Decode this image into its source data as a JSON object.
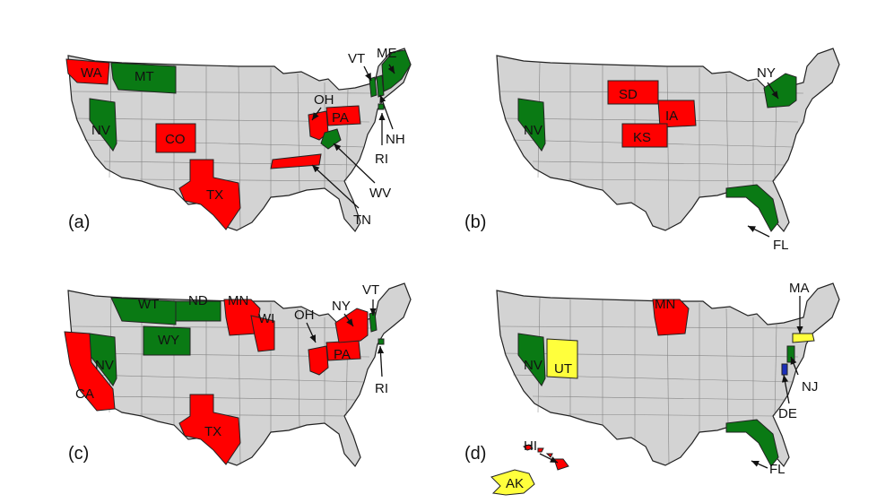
{
  "colors": {
    "red": "#ff0000",
    "green": "#0a7a14",
    "yellow": "#ffff3c",
    "blue": "#1a2eb8",
    "gray": "#d3d3d3"
  },
  "panels": [
    {
      "label": "(a)",
      "states": [
        {
          "abbr": "WA",
          "color": "red",
          "labeled": true
        },
        {
          "abbr": "MT",
          "color": "green",
          "labeled": true
        },
        {
          "abbr": "NV",
          "color": "green",
          "labeled": true
        },
        {
          "abbr": "CO",
          "color": "red",
          "labeled": true
        },
        {
          "abbr": "TX",
          "color": "red",
          "labeled": true
        },
        {
          "abbr": "OH",
          "color": "red",
          "labeled": false
        },
        {
          "abbr": "PA",
          "color": "red",
          "labeled": true
        },
        {
          "abbr": "TN",
          "color": "red",
          "labeled": false
        },
        {
          "abbr": "WV",
          "color": "green",
          "labeled": false
        },
        {
          "abbr": "VT",
          "color": "green",
          "labeled": false
        },
        {
          "abbr": "ME",
          "color": "green",
          "labeled": false
        },
        {
          "abbr": "NH",
          "color": "green",
          "labeled": false
        },
        {
          "abbr": "RI",
          "color": "green",
          "labeled": false
        }
      ],
      "callouts": [
        "OH",
        "VT",
        "ME",
        "NH",
        "RI",
        "WV",
        "TN"
      ]
    },
    {
      "label": "(b)",
      "states": [
        {
          "abbr": "NV",
          "color": "green",
          "labeled": true
        },
        {
          "abbr": "SD",
          "color": "red",
          "labeled": true
        },
        {
          "abbr": "IA",
          "color": "red",
          "labeled": true
        },
        {
          "abbr": "KS",
          "color": "red",
          "labeled": true
        },
        {
          "abbr": "NY",
          "color": "green",
          "labeled": false
        },
        {
          "abbr": "FL",
          "color": "green",
          "labeled": false
        }
      ],
      "callouts": [
        "NY",
        "FL"
      ]
    },
    {
      "label": "(c)",
      "states": [
        {
          "abbr": "WT",
          "color": "green",
          "labeled": true
        },
        {
          "abbr": "ND",
          "color": "green",
          "labeled": true
        },
        {
          "abbr": "MN",
          "color": "red",
          "labeled": true
        },
        {
          "abbr": "WI",
          "color": "red",
          "labeled": true
        },
        {
          "abbr": "WY",
          "color": "green",
          "labeled": true
        },
        {
          "abbr": "NV",
          "color": "green",
          "labeled": true
        },
        {
          "abbr": "CA",
          "color": "red",
          "labeled": true
        },
        {
          "abbr": "TX",
          "color": "red",
          "labeled": true
        },
        {
          "abbr": "PA",
          "color": "red",
          "labeled": true
        },
        {
          "abbr": "OH",
          "color": "red",
          "labeled": false
        },
        {
          "abbr": "NY",
          "color": "red",
          "labeled": false
        },
        {
          "abbr": "VT",
          "color": "green",
          "labeled": false
        },
        {
          "abbr": "RI",
          "color": "green",
          "labeled": false
        }
      ],
      "callouts": [
        "OH",
        "NY",
        "VT",
        "RI"
      ]
    },
    {
      "label": "(d)",
      "states": [
        {
          "abbr": "MN",
          "color": "red",
          "labeled": true
        },
        {
          "abbr": "NV",
          "color": "green",
          "labeled": true
        },
        {
          "abbr": "UT",
          "color": "yellow",
          "labeled": true
        },
        {
          "abbr": "MA",
          "color": "yellow",
          "labeled": false
        },
        {
          "abbr": "NJ",
          "color": "green",
          "labeled": false
        },
        {
          "abbr": "DE",
          "color": "blue",
          "labeled": false
        },
        {
          "abbr": "FL",
          "color": "green",
          "labeled": false
        },
        {
          "abbr": "HI",
          "color": "red",
          "labeled": false
        },
        {
          "abbr": "AK",
          "color": "yellow",
          "labeled": true
        }
      ],
      "callouts": [
        "MA",
        "NJ",
        "DE",
        "FL",
        "HI"
      ]
    }
  ]
}
